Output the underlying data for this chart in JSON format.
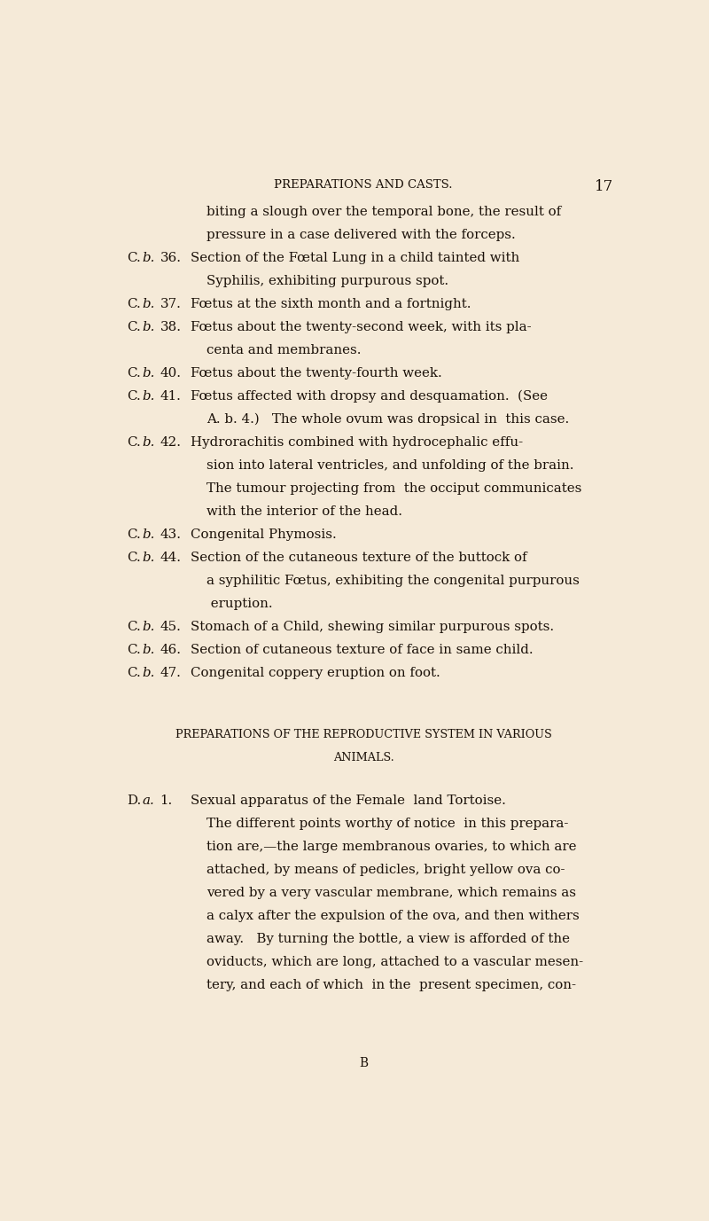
{
  "background_color": "#f5ead8",
  "text_color": "#1a1008",
  "page_width": 8.0,
  "page_height": 13.77,
  "dpi": 100,
  "header_text": "PREPARATIONS AND CASTS.",
  "header_page_num": "17",
  "footer_text": "B",
  "lines": [
    {
      "indent": 1,
      "text": "biting a slough over the temporal bone, the result of"
    },
    {
      "indent": 1,
      "text": "pressure in a case delivered with the forceps."
    },
    {
      "indent": 0,
      "label": "C. b. 36.",
      "text": "Section of the Fœtal Lung in a child tainted with"
    },
    {
      "indent": 1,
      "text": "Syphilis, exhibiting purpurous spot."
    },
    {
      "indent": 0,
      "label": "C. b. 37.",
      "text": "Fœtus at the sixth month and a fortnight."
    },
    {
      "indent": 0,
      "label": "C. b. 38.",
      "text": "Fœtus about the twenty-second week, with its pla-"
    },
    {
      "indent": 1,
      "text": "centa and membranes."
    },
    {
      "indent": 0,
      "label": "C. b. 40.",
      "text": "Fœtus about the twenty-fourth week."
    },
    {
      "indent": 0,
      "label": "C. b. 41.",
      "text": "Fœtus affected with dropsy and desquamation.  (See"
    },
    {
      "indent": 1,
      "text": "A. b. 4.)   The whole ovum was dropsical in  this case."
    },
    {
      "indent": 0,
      "label": "C. b. 42.",
      "text": "Hydrorachitis combined with hydrocephalic effu-"
    },
    {
      "indent": 1,
      "text": "sion into lateral ventricles, and unfolding of the brain."
    },
    {
      "indent": 1,
      "text": "The tumour projecting from  the occiput communicates"
    },
    {
      "indent": 1,
      "text": "with the interior of the head."
    },
    {
      "indent": 0,
      "label": "C. b. 43.",
      "text": "Congenital Phymosis."
    },
    {
      "indent": 0,
      "label": "C. b. 44.",
      "text": "Section of the cutaneous texture of the buttock of"
    },
    {
      "indent": 1,
      "text": "a syphilitic Fœtus, exhibiting the congenital purpurous"
    },
    {
      "indent": 1,
      "text": " eruption."
    },
    {
      "indent": 0,
      "label": "C. b. 45.",
      "text": "Stomach of a Child, shewing similar purpurous spots."
    },
    {
      "indent": 0,
      "label": "C. b. 46.",
      "text": "Section of cutaneous texture of face in same child."
    },
    {
      "indent": 0,
      "label": "C. b. 47.",
      "text": "Congenital coppery eruption on foot."
    },
    {
      "indent": -1,
      "text": ""
    },
    {
      "indent": -1,
      "text": ""
    },
    {
      "indent": -2,
      "text": "PREPARATIONS OF THE REPRODUCTIVE SYSTEM IN VARIOUS"
    },
    {
      "indent": -3,
      "text": "ANIMALS."
    },
    {
      "indent": -1,
      "text": ""
    },
    {
      "indent": 0,
      "label": "D. a. 1.",
      "text": "Sexual apparatus of the Female  land Tortoise."
    },
    {
      "indent": 1,
      "text": "The different points worthy of notice  in this prepara-"
    },
    {
      "indent": 1,
      "text": "tion are,—the large membranous ovaries, to which are"
    },
    {
      "indent": 1,
      "text": "attached, by means of pedicles, bright yellow ova co-"
    },
    {
      "indent": 1,
      "text": "vered by a very vascular membrane, which remains as"
    },
    {
      "indent": 1,
      "text": "a calyx after the expulsion of the ova, and then withers"
    },
    {
      "indent": 1,
      "text": "away.   By turning the bottle, a view is afforded of the"
    },
    {
      "indent": 1,
      "text": "oviducts, which are long, attached to a vascular mesen-"
    },
    {
      "indent": 1,
      "text": "tery, and each of which  in the  present specimen, con-"
    }
  ]
}
